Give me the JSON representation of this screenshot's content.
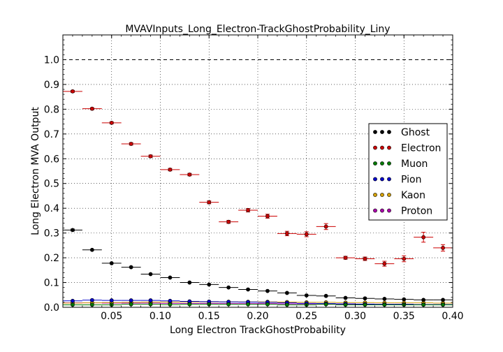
{
  "chart_data": {
    "type": "scatter",
    "title": "MVAVInputs_Long_Electron-TrackGhostProbability_Liny",
    "xlabel": "Long Electron TrackGhostProbability",
    "ylabel": "Long Electron MVA Output",
    "xlim": [
      0.0,
      0.4
    ],
    "ylim": [
      0.0,
      1.1
    ],
    "x_ticks": [
      "0.05",
      "0.10",
      "0.15",
      "0.20",
      "0.25",
      "0.30",
      "0.35",
      "0.40"
    ],
    "y_ticks": [
      "0.0",
      "0.1",
      "0.2",
      "0.3",
      "0.4",
      "0.5",
      "0.6",
      "0.7",
      "0.8",
      "0.9",
      "1.0"
    ],
    "grid": true,
    "reference_line": 1.0,
    "legend_position": "right",
    "bin_half_width": 0.01,
    "x": [
      0.01,
      0.03,
      0.05,
      0.07,
      0.09,
      0.11,
      0.13,
      0.15,
      0.17,
      0.19,
      0.21,
      0.23,
      0.25,
      0.27,
      0.29,
      0.31,
      0.33,
      0.35,
      0.37,
      0.39
    ],
    "series": [
      {
        "name": "Ghost",
        "color": "#000000",
        "values": [
          0.312,
          0.232,
          0.178,
          0.162,
          0.134,
          0.12,
          0.1,
          0.092,
          0.08,
          0.072,
          0.066,
          0.058,
          0.048,
          0.046,
          0.038,
          0.036,
          0.034,
          0.032,
          0.03,
          0.03
        ],
        "errors": [
          0.004,
          0.003,
          0.003,
          0.003,
          0.003,
          0.003,
          0.002,
          0.002,
          0.002,
          0.002,
          0.002,
          0.002,
          0.002,
          0.002,
          0.002,
          0.002,
          0.002,
          0.002,
          0.002,
          0.002
        ]
      },
      {
        "name": "Electron",
        "color": "#cc0000",
        "values": [
          0.872,
          0.802,
          0.745,
          0.66,
          0.61,
          0.556,
          0.536,
          0.424,
          0.345,
          0.392,
          0.368,
          0.298,
          0.295,
          0.326,
          0.2,
          0.196,
          0.176,
          0.196,
          0.283,
          0.24
        ],
        "errors": [
          0.004,
          0.004,
          0.004,
          0.005,
          0.005,
          0.005,
          0.005,
          0.006,
          0.006,
          0.007,
          0.008,
          0.009,
          0.01,
          0.012,
          0.006,
          0.007,
          0.01,
          0.012,
          0.02,
          0.013
        ]
      },
      {
        "name": "Muon",
        "color": "#007a00",
        "values": [
          0.01,
          0.01,
          0.01,
          0.012,
          0.012,
          0.011,
          0.012,
          0.012,
          0.012,
          0.012,
          0.012,
          0.01,
          0.01,
          0.012,
          0.01,
          0.01,
          0.01,
          0.01,
          0.01,
          0.01
        ],
        "errors": [
          0.001,
          0.001,
          0.001,
          0.001,
          0.001,
          0.001,
          0.001,
          0.001,
          0.001,
          0.001,
          0.001,
          0.001,
          0.001,
          0.001,
          0.001,
          0.001,
          0.001,
          0.001,
          0.001,
          0.001
        ]
      },
      {
        "name": "Pion",
        "color": "#0000cc",
        "values": [
          0.026,
          0.029,
          0.028,
          0.028,
          0.028,
          0.026,
          0.024,
          0.023,
          0.022,
          0.021,
          0.02,
          0.018,
          0.016,
          0.015,
          0.014,
          0.013,
          0.012,
          0.012,
          0.011,
          0.011
        ],
        "errors": [
          0.001,
          0.001,
          0.001,
          0.001,
          0.001,
          0.001,
          0.001,
          0.001,
          0.001,
          0.001,
          0.001,
          0.001,
          0.001,
          0.001,
          0.001,
          0.001,
          0.001,
          0.001,
          0.001,
          0.001
        ]
      },
      {
        "name": "Kaon",
        "color": "#d4a000",
        "values": [
          0.017,
          0.018,
          0.019,
          0.02,
          0.021,
          0.021,
          0.022,
          0.022,
          0.022,
          0.022,
          0.022,
          0.021,
          0.02,
          0.02,
          0.019,
          0.019,
          0.018,
          0.018,
          0.018,
          0.017
        ],
        "errors": [
          0.001,
          0.001,
          0.001,
          0.001,
          0.001,
          0.001,
          0.001,
          0.001,
          0.001,
          0.001,
          0.001,
          0.001,
          0.001,
          0.001,
          0.001,
          0.001,
          0.001,
          0.001,
          0.001,
          0.001
        ]
      },
      {
        "name": "Proton",
        "color": "#aa00aa",
        "values": [
          0.018,
          0.018,
          0.017,
          0.017,
          0.017,
          0.016,
          0.016,
          0.016,
          0.015,
          0.015,
          0.015,
          0.014,
          0.014,
          0.013,
          0.013,
          0.012,
          0.012,
          0.012,
          0.011,
          0.011
        ],
        "errors": [
          0.001,
          0.001,
          0.001,
          0.001,
          0.001,
          0.001,
          0.001,
          0.001,
          0.001,
          0.001,
          0.001,
          0.001,
          0.001,
          0.001,
          0.001,
          0.001,
          0.001,
          0.001,
          0.001,
          0.001
        ]
      }
    ]
  }
}
